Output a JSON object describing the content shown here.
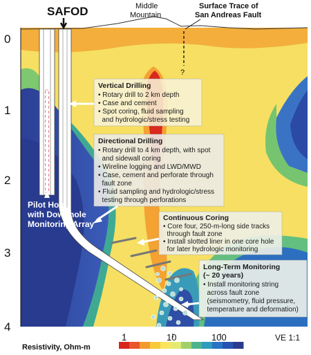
{
  "labels": {
    "safod": "SAFOD",
    "middle_mountain_1": "Middle",
    "middle_mountain_2": "Mountain",
    "surface_trace_1": "Surface Trace of",
    "surface_trace_2": "San Andreas Fault",
    "question_mark": "?",
    "pilot_hole_1": "Pilot Hole",
    "pilot_hole_2": "with Downhole",
    "pilot_hole_3": "Monitoring Array",
    "ve": "VE 1:1"
  },
  "depth_axis": {
    "ticks": [
      "0",
      "1",
      "2",
      "3",
      "4"
    ]
  },
  "boxes": {
    "vertical": {
      "title": "Vertical Drilling",
      "items": [
        "• Rotary drill to 2 km depth",
        "• Case and cement",
        "• Spot coring, fluid sampling",
        "  and hydrologic/stress testing"
      ]
    },
    "directional": {
      "title": "Directional Drilling",
      "items": [
        "• Rotary drill to 4 km depth, with spot",
        "  and sidewall coring",
        "• Wireline logging and LWD/MWD",
        "• Case, cement and perforate through",
        "  fault zone",
        "• Fluid sampling and hydrologic/stress",
        "  testing through perforations"
      ]
    },
    "coring": {
      "title": "Continuous Coring",
      "items": [
        "• Core four, 250-m-long side tracks",
        "  through fault zone",
        "• Install slotted liner in one core hole",
        "  for later hydrologic monitoring"
      ]
    },
    "monitoring": {
      "title_1": "Long-Term Monitoring",
      "title_2": "(~ 20 years)",
      "items": [
        "• Install monitoring string",
        "  across fault zone",
        "  (seismometry, fluid pressure,",
        "  temperature and deformation)"
      ]
    }
  },
  "colorbar": {
    "title": "Resistivity, Ohm-m",
    "ticks": [
      "1",
      "10",
      "100"
    ],
    "colors": [
      "#d7261e",
      "#e8552a",
      "#f29a2e",
      "#f8c93a",
      "#fbe45e",
      "#e3ea72",
      "#9fd06b",
      "#4eb38d",
      "#2f9bbd",
      "#2a73c2",
      "#2852b2",
      "#2a3b8f"
    ]
  },
  "colors": {
    "background_yellow": "#f8e46a",
    "conductive_red": "#d93324",
    "resistive_blue": "#2f47a0"
  }
}
